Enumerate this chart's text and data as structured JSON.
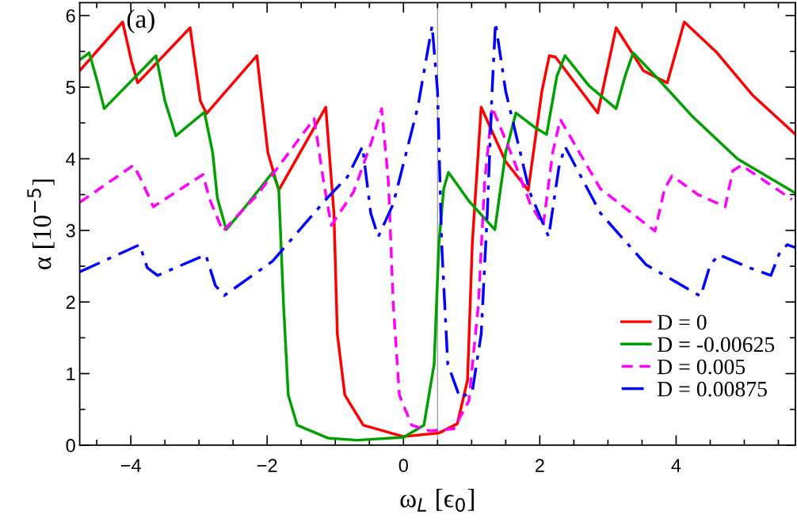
{
  "chart_data": {
    "type": "line",
    "xlabel": "ω$_{L}$ [ϵ$_{0}$]",
    "ylabel": "α [10$^{−5}$]",
    "annotations": [
      "(a)"
    ],
    "xlim": [
      -4.75,
      5.75
    ],
    "ylim": [
      0,
      6.18
    ],
    "xticks": [
      {
        "value": -4.5,
        "label": null
      },
      -4,
      {
        "value": -3.5,
        "label": null
      },
      {
        "value": -3,
        "label": null
      },
      {
        "value": -2.5,
        "label": null
      },
      -2,
      {
        "value": -1.5,
        "label": null
      },
      {
        "value": -1,
        "label": null
      },
      {
        "value": -0.5,
        "label": null
      },
      0,
      {
        "value": 0.5,
        "label": null
      },
      {
        "value": 1,
        "label": null
      },
      {
        "value": 1.5,
        "label": null
      },
      2,
      {
        "value": 2.5,
        "label": null
      },
      {
        "value": 3,
        "label": null
      },
      {
        "value": 3.5,
        "label": null
      },
      4,
      {
        "value": 4.5,
        "label": null
      },
      {
        "value": 5,
        "label": null
      },
      {
        "value": 5.5,
        "label": null
      }
    ],
    "yticks": [
      0,
      {
        "value": 0.5,
        "label": null
      },
      1,
      {
        "value": 1.5,
        "label": null
      },
      2,
      {
        "value": 2.5,
        "label": null
      },
      3,
      {
        "value": 3.5,
        "label": null
      },
      4,
      {
        "value": 4.5,
        "label": null
      },
      5,
      {
        "value": 5.5,
        "label": null
      },
      6
    ],
    "ref_lines": [
      {
        "axis": "x",
        "value": 0.5,
        "color": "#a0a0a0"
      }
    ],
    "legend": "bottom right",
    "grid": false,
    "series": [
      {
        "name": "D = 0",
        "color": "#ff0000",
        "line_style": "solid",
        "x": [
          -4.75,
          -4.12,
          -3.99,
          -3.9,
          -3.13,
          -2.98,
          -2.89,
          -2.15,
          -1.99,
          -1.83,
          -1.14,
          -1.02,
          -0.97,
          -0.86,
          -0.59,
          0.0,
          0.52,
          0.79,
          0.94,
          1.01,
          1.14,
          1.5,
          1.83,
          2.03,
          2.14,
          2.23,
          2.85,
          3.12,
          3.52,
          3.87,
          4.12,
          4.59,
          5.12,
          5.75
        ],
        "values": [
          5.23,
          5.91,
          5.36,
          5.06,
          5.83,
          4.81,
          4.63,
          5.44,
          4.09,
          3.56,
          4.72,
          3.24,
          1.55,
          0.7,
          0.28,
          0.12,
          0.17,
          0.3,
          0.91,
          2.82,
          4.72,
          3.96,
          3.56,
          4.94,
          5.44,
          5.42,
          4.64,
          5.83,
          5.23,
          5.06,
          5.91,
          5.49,
          4.89,
          4.34
        ]
      },
      {
        "name": "D = -0.00625",
        "color": "#00a000",
        "line_style": "solid",
        "x": [
          -4.75,
          -4.61,
          -4.5,
          -4.39,
          -3.63,
          -3.5,
          -3.34,
          -2.92,
          -2.8,
          -2.73,
          -2.6,
          -2.32,
          -1.92,
          -1.83,
          -1.76,
          -1.69,
          -1.56,
          -1.11,
          -0.68,
          0.0,
          0.3,
          0.45,
          0.52,
          0.59,
          0.66,
          0.96,
          1.34,
          1.5,
          1.65,
          1.94,
          2.1,
          2.25,
          2.37,
          2.72,
          3.12,
          3.25,
          3.37,
          3.74,
          4.23,
          4.9,
          5.75
        ],
        "values": [
          5.38,
          5.48,
          5.11,
          4.7,
          5.44,
          4.81,
          4.32,
          4.65,
          4.09,
          3.45,
          3.01,
          3.33,
          3.81,
          3.58,
          1.97,
          0.7,
          0.28,
          0.1,
          0.07,
          0.11,
          0.28,
          1.13,
          2.82,
          3.58,
          3.81,
          3.41,
          3.01,
          4.09,
          4.64,
          4.43,
          4.34,
          5.15,
          5.44,
          5.02,
          4.7,
          5.15,
          5.48,
          5.11,
          4.6,
          4.0,
          3.52
        ]
      },
      {
        "name": "D = 0.005",
        "color": "#ff00ff",
        "line_style": "dashed",
        "x": [
          -4.75,
          -3.96,
          -3.85,
          -3.67,
          -2.94,
          -2.85,
          -2.65,
          -2.14,
          -1.31,
          -1.17,
          -1.06,
          -0.73,
          -0.46,
          -0.32,
          -0.22,
          -0.15,
          -0.06,
          0.12,
          0.39,
          0.74,
          0.96,
          1.1,
          1.19,
          1.3,
          1.59,
          1.86,
          2.05,
          2.19,
          2.3,
          2.89,
          3.69,
          3.83,
          3.94,
          4.32,
          4.72,
          4.83,
          4.96,
          5.7
        ],
        "values": [
          3.39,
          3.91,
          3.71,
          3.33,
          3.78,
          3.45,
          2.99,
          3.5,
          4.56,
          3.67,
          3.07,
          3.54,
          4.26,
          4.7,
          3.67,
          1.97,
          0.7,
          0.28,
          0.2,
          0.23,
          0.62,
          1.97,
          3.67,
          4.72,
          4.05,
          3.37,
          3.07,
          4.09,
          4.55,
          3.58,
          2.99,
          3.58,
          3.76,
          3.5,
          3.33,
          3.83,
          3.91,
          3.43
        ]
      },
      {
        "name": "D = 0.00875",
        "color": "#0000ff",
        "line_style": "dashdot",
        "x": [
          -4.75,
          -3.87,
          -3.76,
          -3.61,
          -2.9,
          -2.76,
          -2.63,
          -1.92,
          -1.12,
          -0.82,
          -0.6,
          -0.48,
          -0.37,
          -0.15,
          0.21,
          0.42,
          0.5,
          0.56,
          0.65,
          0.83,
          1.01,
          1.14,
          1.23,
          1.3,
          1.35,
          1.5,
          1.85,
          2.13,
          2.28,
          2.37,
          2.89,
          3.56,
          4.36,
          4.5,
          4.63,
          5.07,
          5.39,
          5.52,
          5.63,
          5.75
        ],
        "values": [
          2.42,
          2.8,
          2.48,
          2.37,
          2.66,
          2.23,
          2.09,
          2.57,
          3.45,
          3.75,
          4.17,
          3.24,
          2.91,
          3.37,
          4.72,
          5.86,
          4.94,
          2.82,
          1.13,
          0.66,
          0.75,
          1.55,
          3.24,
          4.94,
          5.9,
          4.94,
          3.54,
          2.91,
          3.88,
          4.17,
          3.24,
          2.52,
          2.08,
          2.52,
          2.66,
          2.48,
          2.37,
          2.69,
          2.8,
          2.76
        ]
      }
    ]
  }
}
